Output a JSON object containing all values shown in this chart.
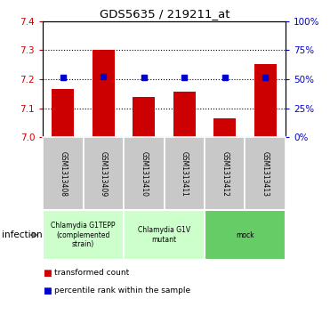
{
  "title": "GDS5635 / 219211_at",
  "samples": [
    "GSM1313408",
    "GSM1313409",
    "GSM1313410",
    "GSM1313411",
    "GSM1313412",
    "GSM1313413"
  ],
  "bar_values": [
    7.165,
    7.302,
    7.14,
    7.157,
    7.065,
    7.252
  ],
  "percentile_values": [
    7.207,
    7.21,
    7.207,
    7.207,
    7.205,
    7.207
  ],
  "ylim_left": [
    7.0,
    7.4
  ],
  "ylim_right": [
    0,
    100
  ],
  "yticks_left": [
    7.0,
    7.1,
    7.2,
    7.3,
    7.4
  ],
  "yticks_right": [
    0,
    25,
    50,
    75,
    100
  ],
  "ytick_labels_right": [
    "0%",
    "25%",
    "50%",
    "75%",
    "100%"
  ],
  "bar_color": "#cc0000",
  "percentile_color": "#0000cc",
  "bar_width": 0.55,
  "groups": [
    {
      "label": "Chlamydia G1TEPP\n(complemented\nstrain)",
      "samples": [
        0,
        1
      ],
      "color": "#ccffcc"
    },
    {
      "label": "Chlamydia G1V\nmutant",
      "samples": [
        2,
        3
      ],
      "color": "#ccffcc"
    },
    {
      "label": "mock",
      "samples": [
        4,
        5
      ],
      "color": "#66cc66"
    }
  ],
  "factor_label": "infection",
  "legend_items": [
    {
      "label": "transformed count",
      "color": "#cc0000"
    },
    {
      "label": "percentile rank within the sample",
      "color": "#0000cc"
    }
  ],
  "tick_label_color_left": "#cc0000",
  "tick_label_color_right": "#0000cc",
  "sample_box_color": "#c8c8c8",
  "grid_lines": [
    7.1,
    7.2,
    7.3
  ]
}
